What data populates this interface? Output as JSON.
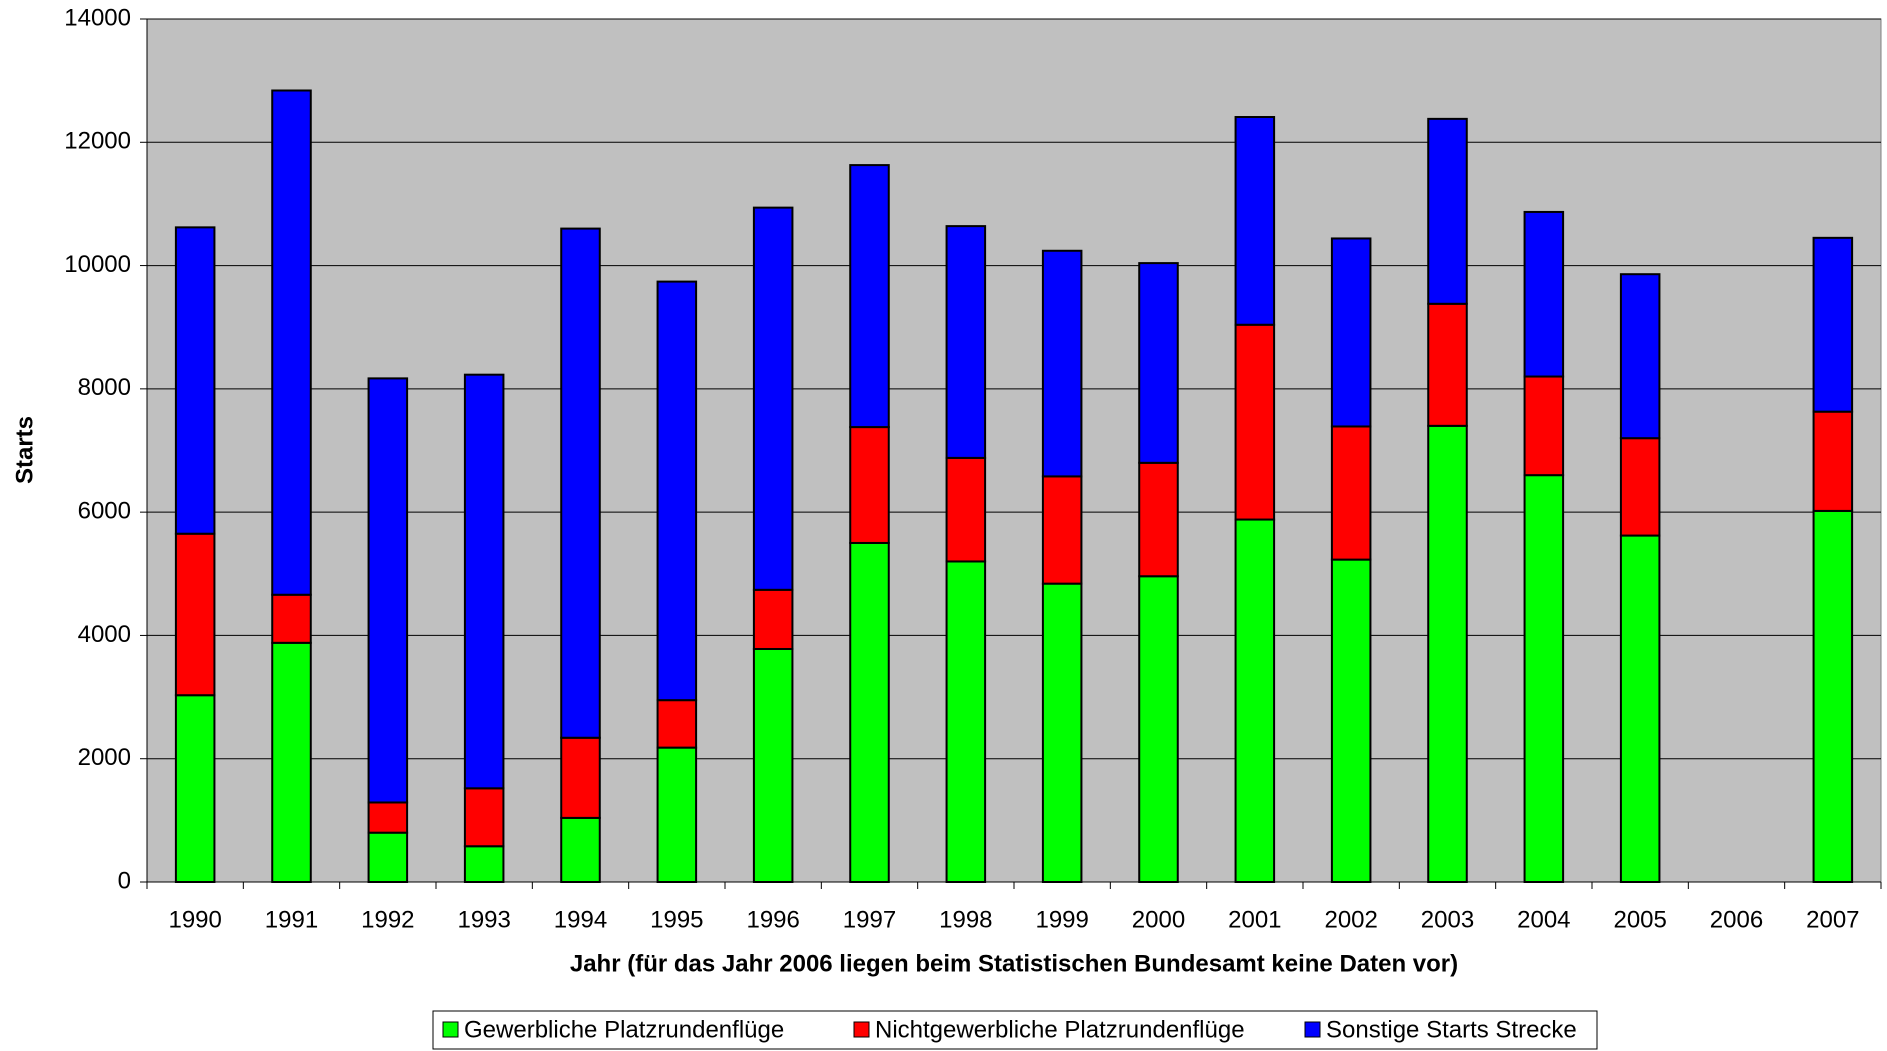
{
  "chart_data": {
    "type": "stacked-bar",
    "x_label": "Jahr (für das Jahr 2006 liegen beim Statistischen Bundesamt keine Daten vor)",
    "y_label": "Starts",
    "categories": [
      "1990",
      "1991",
      "1992",
      "1993",
      "1994",
      "1995",
      "1996",
      "1997",
      "1998",
      "1999",
      "2000",
      "2001",
      "2002",
      "2003",
      "2004",
      "2005",
      "2006",
      "2007"
    ],
    "series": [
      {
        "name": "Gewerbliche Platzrundenflüge",
        "color": "#00ff00",
        "values": [
          3030,
          3880,
          800,
          580,
          1040,
          2180,
          3780,
          5500,
          5200,
          4840,
          4960,
          5880,
          5230,
          7400,
          6600,
          5620,
          null,
          6020
        ]
      },
      {
        "name": "Nichtgewerbliche Platzrundenflüge",
        "color": "#ff0000",
        "values": [
          2620,
          780,
          490,
          940,
          1300,
          770,
          960,
          1880,
          1680,
          1740,
          1840,
          3160,
          2160,
          1980,
          1600,
          1580,
          null,
          1610
        ]
      },
      {
        "name": "Sonstige Starts Strecke",
        "color": "#0000ff",
        "values": [
          4970,
          8180,
          6880,
          6710,
          8260,
          6790,
          6200,
          4250,
          3760,
          3660,
          3240,
          3370,
          3050,
          3000,
          2670,
          2660,
          null,
          2820
        ]
      }
    ],
    "ylim": [
      0,
      14000
    ],
    "yticks": [
      0,
      2000,
      4000,
      6000,
      8000,
      10000,
      12000,
      14000
    ],
    "grid": true,
    "legend": "bottom"
  }
}
